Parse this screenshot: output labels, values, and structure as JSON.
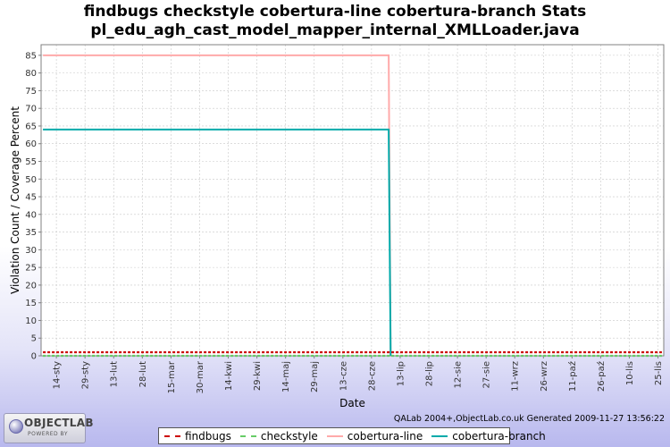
{
  "chart_data": {
    "type": "line",
    "title": "findbugs checkstyle cobertura-line cobertura-branch  Stats",
    "subtitle": "pl_edu_agh_cast_model_mapper_internal_XMLLoader.java",
    "xlabel": "Date",
    "ylabel": "Violation Count / Coverage Percent",
    "ylim": [
      0,
      88
    ],
    "yticks": [
      0,
      5,
      10,
      15,
      20,
      25,
      30,
      35,
      40,
      45,
      50,
      55,
      60,
      65,
      70,
      75,
      80,
      85
    ],
    "xlim": [
      "2009-01-06",
      "2009-11-28"
    ],
    "xtick_labels": [
      "14-sty",
      "29-sty",
      "13-lut",
      "28-lut",
      "15-mar",
      "30-mar",
      "14-kwi",
      "29-kwi",
      "14-maj",
      "29-maj",
      "13-cze",
      "28-cze",
      "13-lip",
      "28-lip",
      "12-sie",
      "27-sie",
      "11-wrz",
      "26-wrz",
      "11-paź",
      "26-paź",
      "10-lis",
      "25-lis"
    ],
    "xtick_dates": [
      "2009-01-14",
      "2009-01-29",
      "2009-02-13",
      "2009-02-28",
      "2009-03-15",
      "2009-03-30",
      "2009-04-14",
      "2009-04-29",
      "2009-05-14",
      "2009-05-29",
      "2009-06-13",
      "2009-06-28",
      "2009-07-13",
      "2009-07-28",
      "2009-08-12",
      "2009-08-27",
      "2009-09-11",
      "2009-09-26",
      "2009-10-11",
      "2009-10-26",
      "2009-11-10",
      "2009-11-25"
    ],
    "grid": true,
    "legend_position": "bottom",
    "series": [
      {
        "name": "findbugs",
        "color": "#cc0000",
        "style": "dashed",
        "x": [
          "2009-01-07",
          "2009-07-07",
          "2009-07-08",
          "2009-11-27"
        ],
        "y": [
          1,
          1,
          1,
          1
        ]
      },
      {
        "name": "checkstyle",
        "color": "#66cc66",
        "style": "dashed",
        "x": [
          "2009-01-07",
          "2009-07-07",
          "2009-07-08",
          "2009-11-27"
        ],
        "y": [
          0,
          0,
          0,
          0
        ]
      },
      {
        "name": "cobertura-line",
        "color": "#ffaaaa",
        "style": "solid",
        "x": [
          "2009-01-07",
          "2009-07-07",
          "2009-07-08"
        ],
        "y": [
          85,
          85,
          0
        ]
      },
      {
        "name": "cobertura-branch",
        "color": "#00aaaa",
        "style": "solid",
        "x": [
          "2009-01-07",
          "2009-07-07",
          "2009-07-08"
        ],
        "y": [
          64,
          64,
          0
        ]
      }
    ]
  },
  "footer": {
    "generated": "QALab 2004+,ObjectLab.co.uk Generated 2009-11-27 13:56:22",
    "logo_text": "OBJECTLAB",
    "logo_sub": "POWERED BY"
  }
}
